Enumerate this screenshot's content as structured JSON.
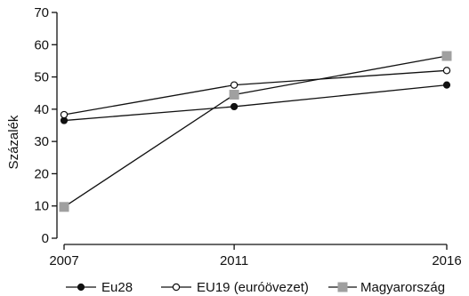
{
  "chart_data": {
    "type": "line",
    "title": "",
    "xlabel": "",
    "ylabel": "Százalék",
    "x": [
      2007,
      2011,
      2016
    ],
    "xlim": [
      2007,
      2016
    ],
    "ylim": [
      0,
      70
    ],
    "yticks": [
      0,
      10,
      20,
      30,
      40,
      50,
      60,
      70
    ],
    "grid": false,
    "legend_position": "bottom",
    "series": [
      {
        "name": "Eu28",
        "values": [
          36.5,
          40.8,
          47.5
        ],
        "marker": "filled-circle",
        "color": "#111111"
      },
      {
        "name": "EU19 (euróövezet)",
        "values": [
          38.3,
          47.5,
          52.0
        ],
        "marker": "open-circle",
        "color": "#111111"
      },
      {
        "name": "Magyarország",
        "values": [
          9.7,
          44.5,
          56.5
        ],
        "marker": "square",
        "color": "#111111",
        "marker_color": "#a0a0a0"
      }
    ]
  }
}
